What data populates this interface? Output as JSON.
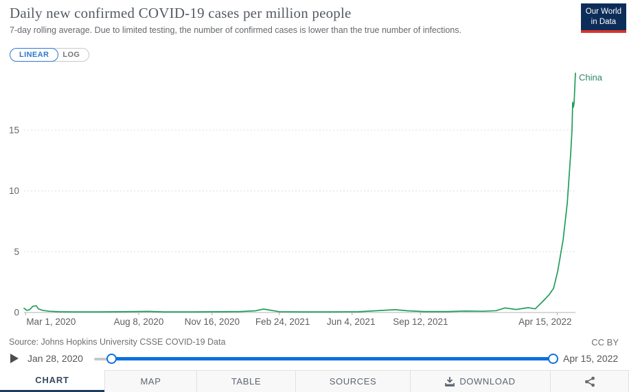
{
  "header": {
    "title": "Daily new confirmed COVID-19 cases per million people",
    "subtitle": "7-day rolling average. Due to limited testing, the number of confirmed cases is lower than the true number of infections.",
    "logo": {
      "line1": "Our World",
      "line2": "in Data"
    }
  },
  "scale_toggle": {
    "linear_label": "LINEAR",
    "log_label": "LOG",
    "selected": "LINEAR"
  },
  "chart_data": {
    "type": "line",
    "title": "Daily new confirmed COVID-19 cases per million people",
    "xlabel": "",
    "ylabel": "",
    "ylim": [
      0,
      20
    ],
    "y_ticks": [
      0,
      5,
      10,
      15
    ],
    "grid": "horizontal-dashed",
    "legend_position": "inline-end-label",
    "x_range": [
      "2020-01-28",
      "2022-04-15"
    ],
    "x_ticks": [
      {
        "label": "Mar 1, 2020",
        "tick": 0.003,
        "text": 0.049
      },
      {
        "label": "Aug 8, 2020",
        "tick": 0.208,
        "text": 0.208
      },
      {
        "label": "Nov 16, 2020",
        "tick": 0.341,
        "text": 0.341
      },
      {
        "label": "Feb 24, 2021",
        "tick": 0.463,
        "text": 0.469
      },
      {
        "label": "Jun 4, 2021",
        "tick": 0.595,
        "text": 0.593
      },
      {
        "label": "Sep 12, 2021",
        "tick": 0.719,
        "text": 0.719
      },
      {
        "label": "Apr 15, 2022",
        "tick": 0.967,
        "text": 0.945
      }
    ],
    "series": [
      {
        "name": "China",
        "color": "#1f9d58",
        "label_color": "#2c8465",
        "points": [
          [
            "2020-01-28",
            0.35
          ],
          [
            "2020-02-01",
            0.18
          ],
          [
            "2020-02-05",
            0.22
          ],
          [
            "2020-02-10",
            0.52
          ],
          [
            "2020-02-15",
            0.55
          ],
          [
            "2020-02-18",
            0.3
          ],
          [
            "2020-02-24",
            0.18
          ],
          [
            "2020-03-05",
            0.1
          ],
          [
            "2020-03-20",
            0.06
          ],
          [
            "2020-04-10",
            0.05
          ],
          [
            "2020-05-15",
            0.05
          ],
          [
            "2020-06-20",
            0.06
          ],
          [
            "2020-07-28",
            0.09
          ],
          [
            "2020-08-20",
            0.05
          ],
          [
            "2020-10-01",
            0.05
          ],
          [
            "2020-11-10",
            0.06
          ],
          [
            "2020-12-10",
            0.08
          ],
          [
            "2021-01-01",
            0.14
          ],
          [
            "2021-01-13",
            0.28
          ],
          [
            "2021-01-22",
            0.2
          ],
          [
            "2021-02-05",
            0.07
          ],
          [
            "2021-03-10",
            0.05
          ],
          [
            "2021-04-20",
            0.05
          ],
          [
            "2021-06-01",
            0.06
          ],
          [
            "2021-07-25",
            0.23
          ],
          [
            "2021-08-12",
            0.14
          ],
          [
            "2021-09-05",
            0.08
          ],
          [
            "2021-10-10",
            0.08
          ],
          [
            "2021-11-05",
            0.12
          ],
          [
            "2021-12-01",
            0.1
          ],
          [
            "2021-12-20",
            0.15
          ],
          [
            "2022-01-02",
            0.38
          ],
          [
            "2022-01-18",
            0.25
          ],
          [
            "2022-02-05",
            0.4
          ],
          [
            "2022-02-15",
            0.3
          ],
          [
            "2022-02-26",
            0.9
          ],
          [
            "2022-03-08",
            1.5
          ],
          [
            "2022-03-14",
            2.0
          ],
          [
            "2022-03-20",
            3.4
          ],
          [
            "2022-03-28",
            6.0
          ],
          [
            "2022-04-03",
            9.0
          ],
          [
            "2022-04-08",
            13.0
          ],
          [
            "2022-04-10",
            15.0
          ],
          [
            "2022-04-11",
            17.3
          ],
          [
            "2022-04-12",
            16.9
          ],
          [
            "2022-04-13",
            17.2
          ],
          [
            "2022-04-15",
            19.7
          ]
        ]
      }
    ]
  },
  "footer": {
    "source": "Source: Johns Hopkins University CSSE COVID-19 Data",
    "license": "CC BY"
  },
  "timeline": {
    "start_label": "Jan 28, 2020",
    "end_label": "Apr 15, 2022",
    "play_icon": "play-icon"
  },
  "tabs": [
    {
      "label": "CHART",
      "active": true
    },
    {
      "label": "MAP",
      "active": false
    },
    {
      "label": "TABLE",
      "active": false
    },
    {
      "label": "SOURCES",
      "active": false
    },
    {
      "label": "DOWNLOAD",
      "active": false,
      "icon": "download-icon"
    },
    {
      "label": "",
      "active": false,
      "icon": "share-icon"
    }
  ],
  "colors": {
    "accent_blue": "#0d70de",
    "toggle_blue": "#2f77cf",
    "logo_navy": "#0d2d59",
    "logo_red": "#d3362d",
    "tab_underline_navy": "#1d3c5e",
    "line_green": "#1f9d58",
    "entity_label_teal": "#2c8465"
  }
}
